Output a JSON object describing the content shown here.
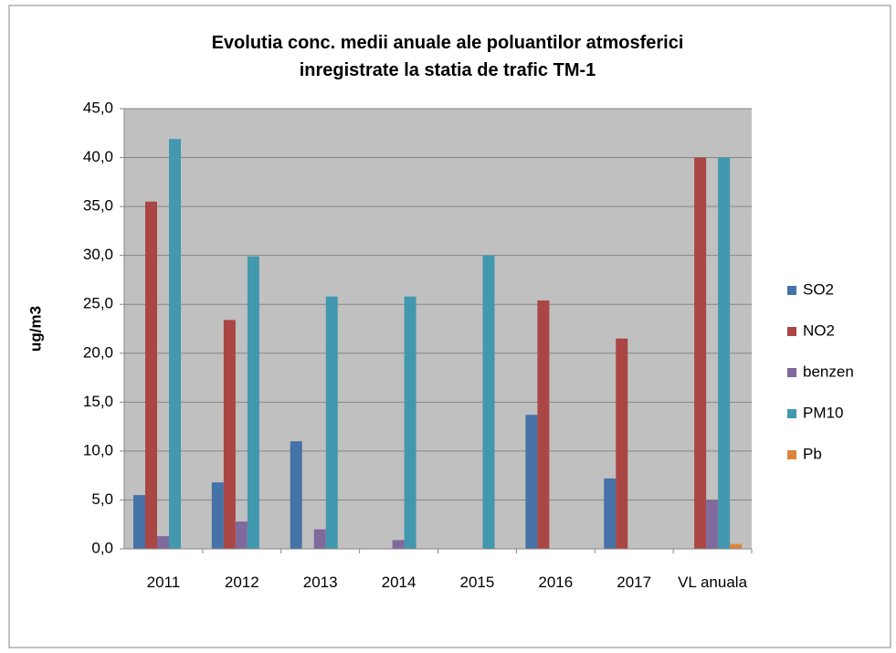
{
  "chart_data": {
    "type": "bar",
    "title": "Evolutia conc. medii anuale ale poluantilor atmosferici inregistrate la statia de trafic TM-1",
    "y_label": "ug/m3",
    "categories": [
      "2011",
      "2012",
      "2013",
      "2014",
      "2015",
      "2016",
      "2017",
      "VL anuala"
    ],
    "series": [
      {
        "name": "SO2",
        "color": "#4572a7",
        "values": [
          5.5,
          6.8,
          11.0,
          null,
          null,
          13.7,
          7.2,
          null
        ]
      },
      {
        "name": "NO2",
        "color": "#aa4643",
        "values": [
          35.5,
          23.4,
          null,
          null,
          null,
          25.4,
          21.5,
          40.0
        ]
      },
      {
        "name": "benzen",
        "color": "#80699b",
        "values": [
          1.3,
          2.8,
          2.0,
          0.9,
          null,
          null,
          null,
          5.0
        ]
      },
      {
        "name": "PM10",
        "color": "#4198af",
        "values": [
          41.9,
          29.9,
          25.8,
          25.8,
          30.0,
          null,
          null,
          40.0
        ]
      },
      {
        "name": "Pb",
        "color": "#db843d",
        "values": [
          null,
          null,
          null,
          null,
          null,
          null,
          null,
          0.5
        ]
      }
    ],
    "ylim": [
      0,
      45
    ],
    "yticks": [
      {
        "value": 0,
        "label": "0,0"
      },
      {
        "value": 5,
        "label": "5,0"
      },
      {
        "value": 10,
        "label": "10,0"
      },
      {
        "value": 15,
        "label": "15,0"
      },
      {
        "value": 20,
        "label": "20,0"
      },
      {
        "value": 25,
        "label": "25,0"
      },
      {
        "value": 30,
        "label": "30,0"
      },
      {
        "value": 35,
        "label": "35,0"
      },
      {
        "value": 40,
        "label": "40,0"
      },
      {
        "value": 45,
        "label": "45,0"
      }
    ],
    "grid": true,
    "legend": "right",
    "plot_background": "#c0c0c0"
  }
}
